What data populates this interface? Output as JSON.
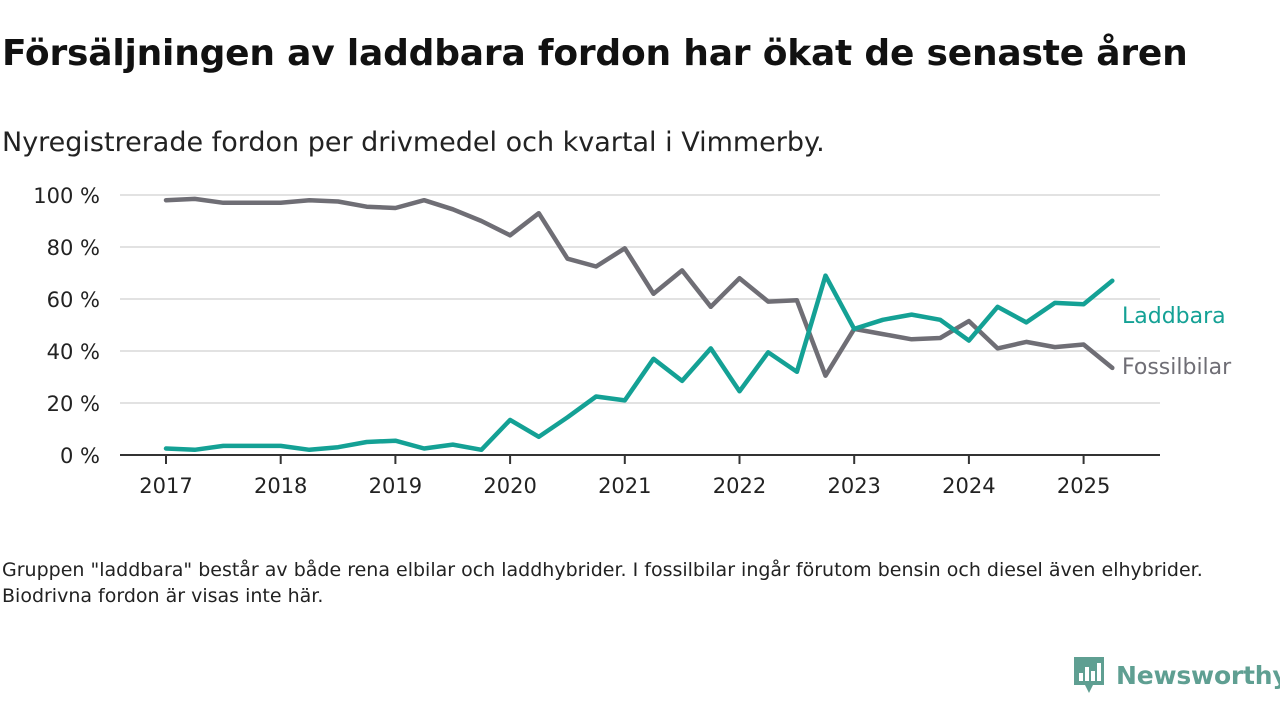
{
  "header": {
    "title": "Försäljningen av laddbara fordon har ökat de senaste åren",
    "subtitle": "Nyregistrerade fordon per drivmedel och kvartal i Vimmerby."
  },
  "footnote": "Gruppen \"laddbara\" består av både rena elbilar och laddhybrider. I fossilbilar ingår förutom bensin och diesel även elhybrider. Biodrivna fordon är visas inte här.",
  "brand": {
    "name": "Newsworthy",
    "icon": "newsworthy-logo-icon"
  },
  "colors": {
    "laddbara": "#14a195",
    "fossilbilar": "#6f6e75",
    "grid": "#d9d9d9",
    "axis": "#333333",
    "brand": "#5f9f92"
  },
  "chart_data": {
    "type": "line",
    "x_unit": "quarter",
    "x": [
      "2017-Q1",
      "2017-Q2",
      "2017-Q3",
      "2017-Q4",
      "2018-Q1",
      "2018-Q2",
      "2018-Q3",
      "2018-Q4",
      "2019-Q1",
      "2019-Q2",
      "2019-Q3",
      "2019-Q4",
      "2020-Q1",
      "2020-Q2",
      "2020-Q3",
      "2020-Q4",
      "2021-Q1",
      "2021-Q2",
      "2021-Q3",
      "2021-Q4",
      "2022-Q1",
      "2022-Q2",
      "2022-Q3",
      "2022-Q4",
      "2023-Q1",
      "2023-Q2",
      "2023-Q3",
      "2023-Q4",
      "2024-Q1",
      "2024-Q2",
      "2024-Q3",
      "2024-Q4",
      "2025-Q1",
      "2025-Q2"
    ],
    "x_ticks": [
      "2017",
      "2018",
      "2019",
      "2020",
      "2021",
      "2022",
      "2023",
      "2024",
      "2025"
    ],
    "y_ticks": [
      "0 %",
      "20 %",
      "40 %",
      "60 %",
      "80 %",
      "100 %"
    ],
    "ylim": [
      0,
      100
    ],
    "grid": true,
    "legend": "direct labels at right end of lines",
    "series": [
      {
        "name": "Laddbara",
        "color": "#14a195",
        "values": [
          2.5,
          2,
          3.5,
          3.5,
          3.5,
          2,
          3,
          5,
          5.5,
          2.5,
          4,
          2,
          13.5,
          7,
          14.5,
          22.5,
          21,
          37,
          28.5,
          41,
          24.5,
          39.5,
          32,
          69,
          48.5,
          52,
          54,
          52,
          44,
          57,
          51,
          58.5,
          58,
          67
        ]
      },
      {
        "name": "Fossilbilar",
        "color": "#6f6e75",
        "values": [
          98,
          98.5,
          97,
          97,
          97,
          98,
          97.5,
          95.5,
          95,
          98,
          94.5,
          90,
          84.5,
          93,
          75.5,
          72.5,
          79.5,
          62,
          71,
          57,
          68,
          59,
          59.5,
          30.5,
          48.5,
          46.5,
          44.5,
          45,
          51.5,
          41,
          43.5,
          41.5,
          42.5,
          33.5
        ]
      }
    ]
  }
}
